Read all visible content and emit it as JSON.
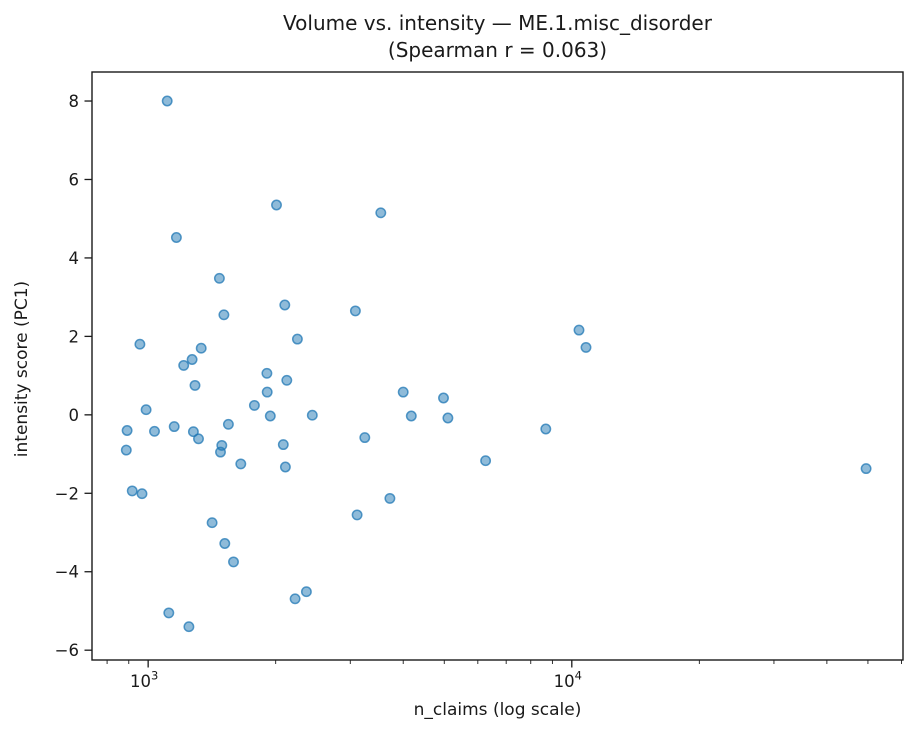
{
  "chart_data": {
    "type": "scatter",
    "title": "Volume vs. intensity — ME.1.misc_disorder",
    "subtitle": "(Spearman r = 0.063)",
    "xlabel": "n_claims (log scale)",
    "ylabel": "intensity score (PC1)",
    "x_scale": "log",
    "y_scale": "linear",
    "grid": false,
    "legend": "none",
    "xlim": [
      737,
      60500
    ],
    "ylim": [
      -6.25,
      8.74
    ],
    "x_major_ticks": [
      {
        "value": 1000,
        "base": "10",
        "exponent": "3"
      },
      {
        "value": 10000,
        "base": "10",
        "exponent": "4"
      }
    ],
    "x_minor_ticks": [
      800,
      900,
      2000,
      3000,
      4000,
      5000,
      6000,
      7000,
      8000,
      9000,
      20000,
      30000,
      40000,
      50000,
      60000
    ],
    "y_ticks": [
      {
        "value": 8,
        "label": "8"
      },
      {
        "value": 6,
        "label": "6"
      },
      {
        "value": 4,
        "label": "4"
      },
      {
        "value": 2,
        "label": "2"
      },
      {
        "value": 0,
        "label": "0"
      },
      {
        "value": -2,
        "label": "−2"
      },
      {
        "value": -4,
        "label": "−4"
      },
      {
        "value": -6,
        "label": "−6"
      }
    ],
    "marker": {
      "shape": "circle",
      "color": "#1f77b4",
      "fill_alpha": 0.5,
      "edge_alpha": 0.75
    },
    "spine_color": "#1a1a1a",
    "points": [
      [
        888,
        -0.9
      ],
      [
        892,
        -0.4
      ],
      [
        917,
        -1.94
      ],
      [
        956,
        1.8
      ],
      [
        967,
        -2.01
      ],
      [
        989,
        0.13
      ],
      [
        1035,
        -0.42
      ],
      [
        1109,
        8.0
      ],
      [
        1119,
        -5.05
      ],
      [
        1152,
        -0.3
      ],
      [
        1166,
        4.52
      ],
      [
        1213,
        1.26
      ],
      [
        1248,
        -5.4
      ],
      [
        1270,
        1.41
      ],
      [
        1279,
        -0.43
      ],
      [
        1290,
        0.75
      ],
      [
        1315,
        -0.61
      ],
      [
        1334,
        1.7
      ],
      [
        1416,
        -2.75
      ],
      [
        1473,
        3.48
      ],
      [
        1482,
        -0.95
      ],
      [
        1492,
        -0.78
      ],
      [
        1509,
        2.55
      ],
      [
        1517,
        -3.28
      ],
      [
        1547,
        -0.24
      ],
      [
        1590,
        -3.75
      ],
      [
        1655,
        -1.25
      ],
      [
        1782,
        0.24
      ],
      [
        1907,
        1.06
      ],
      [
        1910,
        0.58
      ],
      [
        1942,
        -0.03
      ],
      [
        2009,
        5.35
      ],
      [
        2085,
        -0.76
      ],
      [
        2102,
        2.8
      ],
      [
        2109,
        -1.33
      ],
      [
        2125,
        0.88
      ],
      [
        2223,
        -4.69
      ],
      [
        2250,
        1.93
      ],
      [
        2364,
        -4.51
      ],
      [
        2441,
        -0.01
      ],
      [
        3085,
        2.65
      ],
      [
        3114,
        -2.55
      ],
      [
        3247,
        -0.58
      ],
      [
        3542,
        5.15
      ],
      [
        3720,
        -2.13
      ],
      [
        4000,
        0.58
      ],
      [
        4180,
        -0.03
      ],
      [
        4980,
        0.43
      ],
      [
        5100,
        -0.08
      ],
      [
        6260,
        -1.17
      ],
      [
        8680,
        -0.36
      ],
      [
        10400,
        2.16
      ],
      [
        10800,
        1.72
      ],
      [
        49500,
        -1.37
      ]
    ]
  }
}
